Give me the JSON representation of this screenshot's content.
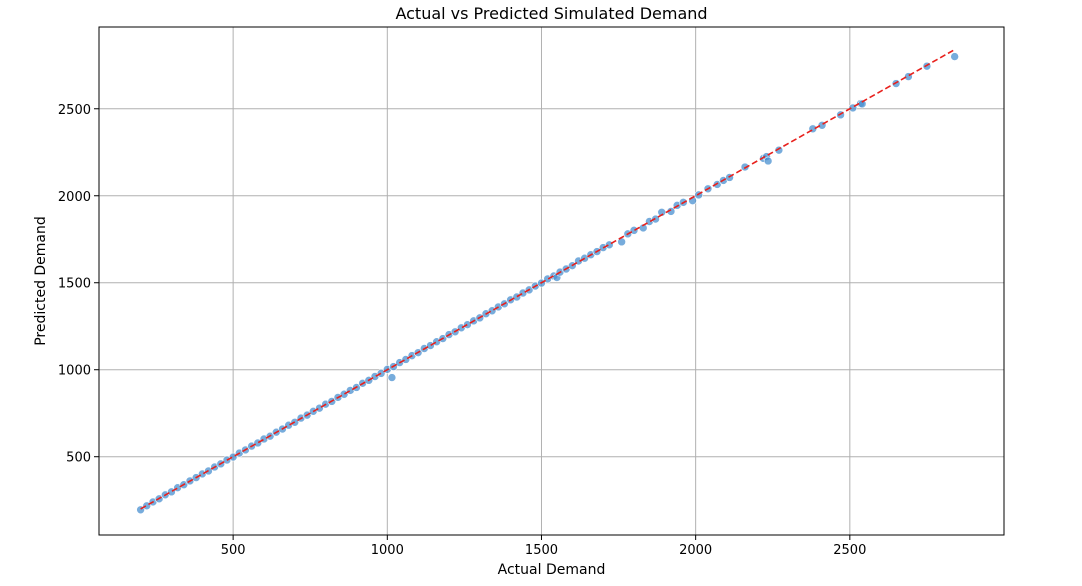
{
  "chart_data": {
    "type": "scatter",
    "title": "Actual vs Predicted Simulated Demand",
    "xlabel": "Actual Demand",
    "ylabel": "Predicted Demand",
    "xlim": [
      65,
      3000
    ],
    "ylim": [
      50,
      2970
    ],
    "xticks": [
      500,
      1000,
      1500,
      2000,
      2500
    ],
    "yticks": [
      500,
      1000,
      1500,
      2000,
      2500
    ],
    "grid": true,
    "colors": {
      "points": "#4a90d0",
      "reference_line": "#e8201c",
      "grid": "#b0b0b0"
    },
    "reference_line": {
      "style": "dashed",
      "from": [
        200,
        200
      ],
      "to": [
        2840,
        2840
      ]
    },
    "series": [
      {
        "points": [
          [
            200,
            195
          ],
          [
            220,
            218
          ],
          [
            240,
            240
          ],
          [
            260,
            258
          ],
          [
            280,
            281
          ],
          [
            300,
            298
          ],
          [
            320,
            322
          ],
          [
            340,
            339
          ],
          [
            360,
            361
          ],
          [
            380,
            380
          ],
          [
            400,
            401
          ],
          [
            420,
            418
          ],
          [
            440,
            441
          ],
          [
            460,
            459
          ],
          [
            480,
            481
          ],
          [
            500,
            498
          ],
          [
            520,
            521
          ],
          [
            540,
            539
          ],
          [
            560,
            561
          ],
          [
            580,
            579
          ],
          [
            600,
            602
          ],
          [
            620,
            618
          ],
          [
            640,
            641
          ],
          [
            660,
            659
          ],
          [
            680,
            681
          ],
          [
            700,
            698
          ],
          [
            720,
            722
          ],
          [
            740,
            739
          ],
          [
            760,
            761
          ],
          [
            780,
            779
          ],
          [
            800,
            802
          ],
          [
            820,
            818
          ],
          [
            840,
            841
          ],
          [
            860,
            859
          ],
          [
            880,
            881
          ],
          [
            900,
            898
          ],
          [
            920,
            922
          ],
          [
            940,
            939
          ],
          [
            960,
            961
          ],
          [
            980,
            979
          ],
          [
            1000,
            1002
          ],
          [
            1015,
            955
          ],
          [
            1020,
            1018
          ],
          [
            1040,
            1041
          ],
          [
            1060,
            1059
          ],
          [
            1080,
            1081
          ],
          [
            1100,
            1098
          ],
          [
            1120,
            1122
          ],
          [
            1140,
            1139
          ],
          [
            1160,
            1161
          ],
          [
            1180,
            1179
          ],
          [
            1200,
            1202
          ],
          [
            1220,
            1218
          ],
          [
            1240,
            1241
          ],
          [
            1260,
            1259
          ],
          [
            1280,
            1281
          ],
          [
            1300,
            1298
          ],
          [
            1320,
            1322
          ],
          [
            1340,
            1339
          ],
          [
            1360,
            1361
          ],
          [
            1380,
            1379
          ],
          [
            1400,
            1402
          ],
          [
            1420,
            1418
          ],
          [
            1440,
            1441
          ],
          [
            1460,
            1459
          ],
          [
            1480,
            1481
          ],
          [
            1500,
            1498
          ],
          [
            1520,
            1522
          ],
          [
            1540,
            1539
          ],
          [
            1550,
            1530
          ],
          [
            1560,
            1561
          ],
          [
            1580,
            1579
          ],
          [
            1600,
            1598
          ],
          [
            1620,
            1625
          ],
          [
            1640,
            1641
          ],
          [
            1660,
            1661
          ],
          [
            1680,
            1679
          ],
          [
            1700,
            1702
          ],
          [
            1720,
            1718
          ],
          [
            1760,
            1735
          ],
          [
            1780,
            1781
          ],
          [
            1800,
            1801
          ],
          [
            1830,
            1815
          ],
          [
            1850,
            1852
          ],
          [
            1870,
            1866
          ],
          [
            1890,
            1905
          ],
          [
            1920,
            1910
          ],
          [
            1940,
            1945
          ],
          [
            1960,
            1962
          ],
          [
            1990,
            1972
          ],
          [
            2010,
            2005
          ],
          [
            2040,
            2040
          ],
          [
            2070,
            2065
          ],
          [
            2090,
            2088
          ],
          [
            2110,
            2105
          ],
          [
            2160,
            2165
          ],
          [
            2220,
            2215
          ],
          [
            2230,
            2225
          ],
          [
            2235,
            2200
          ],
          [
            2270,
            2262
          ],
          [
            2380,
            2385
          ],
          [
            2410,
            2405
          ],
          [
            2470,
            2465
          ],
          [
            2510,
            2505
          ],
          [
            2535,
            2530
          ],
          [
            2540,
            2528
          ],
          [
            2650,
            2645
          ],
          [
            2690,
            2685
          ],
          [
            2750,
            2745
          ],
          [
            2840,
            2800
          ]
        ]
      }
    ]
  }
}
